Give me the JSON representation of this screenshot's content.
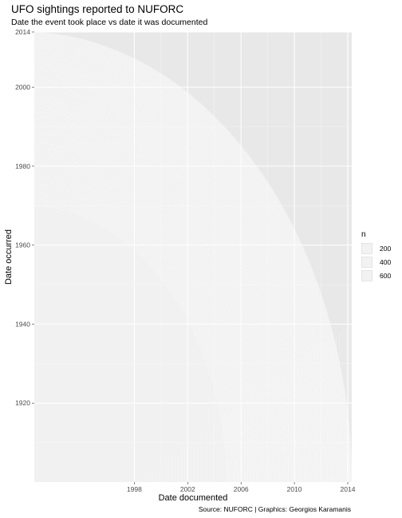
{
  "chart_data": {
    "type": "scatter",
    "title": "UFO sightings reported to NUFORC",
    "subtitle": "Date the event took place vs date it was documented",
    "xlabel": "Date documented",
    "ylabel": "Date occurred",
    "x_ticks": [
      1998,
      2002,
      2006,
      2010,
      2014
    ],
    "y_ticks": [
      1920,
      1940,
      1960,
      1980,
      2000,
      2014
    ],
    "xlim": [
      1990.5,
      2014.3
    ],
    "ylim": [
      1900,
      2014
    ],
    "grid": true,
    "legend": {
      "title": "n",
      "position": "right",
      "entries": [
        "200",
        "400",
        "600"
      ]
    },
    "caption": "Source: NUFORC | Graphics: Georgios Karamanis",
    "colors": {
      "panel": "#e8e8e8",
      "grid": "#ffffff",
      "marks": "#ffffff"
    }
  }
}
